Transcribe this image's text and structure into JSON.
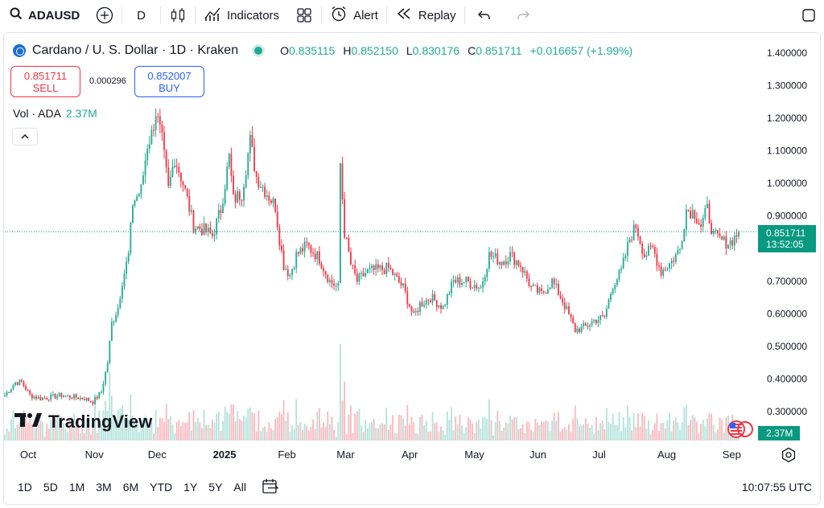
{
  "toolbar": {
    "symbol": "ADAUSD",
    "interval": "D",
    "indicators_label": "Indicators",
    "alert_label": "Alert",
    "replay_label": "Replay"
  },
  "legend": {
    "title": "Cardano / U. S. Dollar · 1D · Kraken",
    "o_key": "O",
    "o_val": "0.835115",
    "h_key": "H",
    "h_val": "0.852150",
    "l_key": "L",
    "l_val": "0.830176",
    "c_key": "C",
    "c_val": "0.851711",
    "change": "+0.016657 (+1.99%)"
  },
  "trade": {
    "sell_price": "0.851711",
    "sell_label": "SELL",
    "spread": "0.000296",
    "buy_price": "0.852007",
    "buy_label": "BUY"
  },
  "volume_legend": {
    "label": "Vol · ADA",
    "value": "2.37M"
  },
  "last_price": {
    "value": "0.851711",
    "countdown": "13:52:05"
  },
  "volume_tag": "2.37M",
  "branding": "TradingView",
  "bottom": {
    "ranges": [
      "1D",
      "5D",
      "1M",
      "3M",
      "6M",
      "YTD",
      "1Y",
      "5Y",
      "All"
    ],
    "clock": "10:07:55 UTC"
  },
  "colors": {
    "up": "#22ab94",
    "down": "#f23645",
    "accent": "#2962ff"
  },
  "chart_data": {
    "type": "candlestick",
    "title": "Cardano / U. S. Dollar · 1D · Kraken",
    "y_ticks": [
      "1.400000",
      "1.300000",
      "1.200000",
      "1.100000",
      "1.000000",
      "0.900000",
      "0.800000",
      "0.700000",
      "0.600000",
      "0.500000",
      "0.400000",
      "0.300000"
    ],
    "ylim": [
      0.25,
      1.42
    ],
    "x_ticks": [
      "Oct",
      "Nov",
      "Dec",
      "2025",
      "Feb",
      "Mar",
      "Apr",
      "May",
      "Jun",
      "Jul",
      "Aug",
      "Sep"
    ],
    "x_tick_dates": [
      "2024-10-01",
      "2024-11-01",
      "2024-12-01",
      "2025-01-01",
      "2025-02-01",
      "2025-03-01",
      "2025-04-01",
      "2025-05-01",
      "2025-06-01",
      "2025-07-01",
      "2025-08-01",
      "2025-09-01"
    ],
    "x_range": [
      "2024-09-23",
      "2025-09-08"
    ],
    "close_path": [
      [
        "2024-09-23",
        0.35
      ],
      [
        "2024-09-28",
        0.39
      ],
      [
        "2024-10-01",
        0.39
      ],
      [
        "2024-10-05",
        0.35
      ],
      [
        "2024-10-10",
        0.34
      ],
      [
        "2024-10-20",
        0.35
      ],
      [
        "2024-10-31",
        0.34
      ],
      [
        "2024-11-04",
        0.33
      ],
      [
        "2024-11-08",
        0.36
      ],
      [
        "2024-11-11",
        0.45
      ],
      [
        "2024-11-13",
        0.57
      ],
      [
        "2024-11-16",
        0.62
      ],
      [
        "2024-11-18",
        0.7
      ],
      [
        "2024-11-21",
        0.78
      ],
      [
        "2024-11-23",
        0.94
      ],
      [
        "2024-11-27",
        0.98
      ],
      [
        "2024-11-30",
        1.12
      ],
      [
        "2024-12-02",
        1.15
      ],
      [
        "2024-12-04",
        1.22
      ],
      [
        "2024-12-07",
        1.13
      ],
      [
        "2024-12-10",
        0.98
      ],
      [
        "2024-12-13",
        1.08
      ],
      [
        "2024-12-17",
        1.0
      ],
      [
        "2024-12-19",
        0.95
      ],
      [
        "2024-12-22",
        0.87
      ],
      [
        "2024-12-26",
        0.86
      ],
      [
        "2024-12-31",
        0.84
      ],
      [
        "2025-01-04",
        0.92
      ],
      [
        "2025-01-08",
        1.08
      ],
      [
        "2025-01-10",
        0.95
      ],
      [
        "2025-01-14",
        0.97
      ],
      [
        "2025-01-18",
        1.13
      ],
      [
        "2025-01-21",
        1.02
      ],
      [
        "2025-01-26",
        0.97
      ],
      [
        "2025-01-30",
        0.93
      ],
      [
        "2025-02-01",
        0.83
      ],
      [
        "2025-02-03",
        0.75
      ],
      [
        "2025-02-06",
        0.72
      ],
      [
        "2025-02-09",
        0.78
      ],
      [
        "2025-02-14",
        0.81
      ],
      [
        "2025-02-20",
        0.77
      ],
      [
        "2025-02-25",
        0.7
      ],
      [
        "2025-03-01",
        0.68
      ],
      [
        "2025-03-02",
        1.06
      ],
      [
        "2025-03-04",
        0.85
      ],
      [
        "2025-03-07",
        0.75
      ],
      [
        "2025-03-10",
        0.7
      ],
      [
        "2025-03-15",
        0.73
      ],
      [
        "2025-03-25",
        0.74
      ],
      [
        "2025-04-01",
        0.68
      ],
      [
        "2025-04-06",
        0.59
      ],
      [
        "2025-04-09",
        0.63
      ],
      [
        "2025-04-14",
        0.65
      ],
      [
        "2025-04-20",
        0.62
      ],
      [
        "2025-04-25",
        0.7
      ],
      [
        "2025-05-01",
        0.7
      ],
      [
        "2025-05-08",
        0.68
      ],
      [
        "2025-05-12",
        0.78
      ],
      [
        "2025-05-18",
        0.76
      ],
      [
        "2025-05-22",
        0.78
      ],
      [
        "2025-05-27",
        0.75
      ],
      [
        "2025-06-01",
        0.68
      ],
      [
        "2025-06-06",
        0.66
      ],
      [
        "2025-06-11",
        0.7
      ],
      [
        "2025-06-16",
        0.64
      ],
      [
        "2025-06-22",
        0.55
      ],
      [
        "2025-06-27",
        0.56
      ],
      [
        "2025-07-01",
        0.58
      ],
      [
        "2025-07-06",
        0.59
      ],
      [
        "2025-07-10",
        0.69
      ],
      [
        "2025-07-14",
        0.73
      ],
      [
        "2025-07-18",
        0.83
      ],
      [
        "2025-07-21",
        0.87
      ],
      [
        "2025-07-25",
        0.78
      ],
      [
        "2025-07-29",
        0.8
      ],
      [
        "2025-08-02",
        0.73
      ],
      [
        "2025-08-07",
        0.76
      ],
      [
        "2025-08-11",
        0.8
      ],
      [
        "2025-08-14",
        0.92
      ],
      [
        "2025-08-18",
        0.91
      ],
      [
        "2025-08-21",
        0.87
      ],
      [
        "2025-08-24",
        0.92
      ],
      [
        "2025-08-27",
        0.84
      ],
      [
        "2025-09-01",
        0.82
      ],
      [
        "2025-09-04",
        0.82
      ],
      [
        "2025-09-08",
        0.85
      ]
    ],
    "last_close": 0.851711
  }
}
